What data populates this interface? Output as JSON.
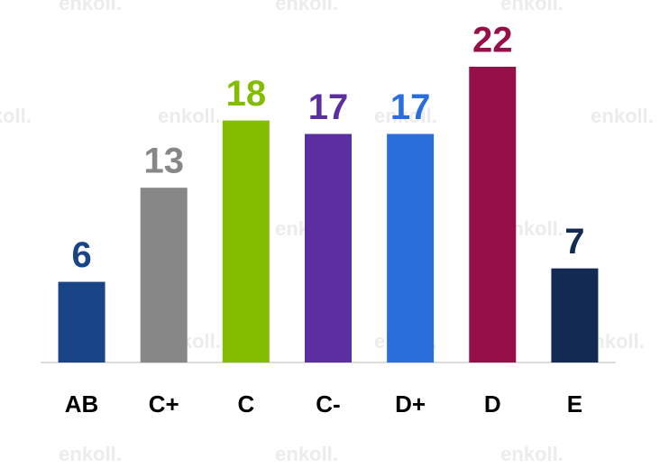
{
  "chart_data": {
    "type": "bar",
    "categories": [
      "AB",
      "C+",
      "C",
      "C-",
      "D+",
      "D",
      "E"
    ],
    "values": [
      6,
      13,
      18,
      17,
      17,
      22,
      7
    ],
    "colors": [
      "#1a4488",
      "#878787",
      "#84bd00",
      "#5b2fa0",
      "#2a6edb",
      "#970f48",
      "#132b52"
    ],
    "watermark": "enkoll."
  }
}
